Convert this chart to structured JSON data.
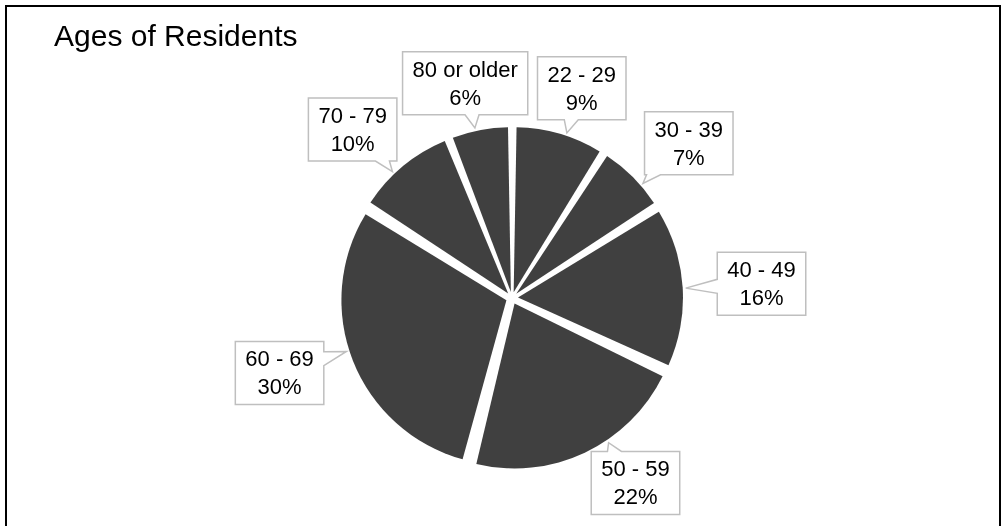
{
  "chart_data": {
    "type": "pie",
    "title": "Ages of Residents",
    "categories": [
      "22 - 29",
      "30 - 39",
      "40 - 49",
      "50 - 59",
      "60 - 69",
      "70 - 79",
      "80 or older"
    ],
    "values": [
      9,
      7,
      16,
      22,
      30,
      10,
      6
    ],
    "value_labels": [
      "9%",
      "7%",
      "16%",
      "22%",
      "30%",
      "10%",
      "6%"
    ],
    "colors": [
      "#404040",
      "#404040",
      "#404040",
      "#404040",
      "#404040",
      "#404040",
      "#404040"
    ]
  }
}
